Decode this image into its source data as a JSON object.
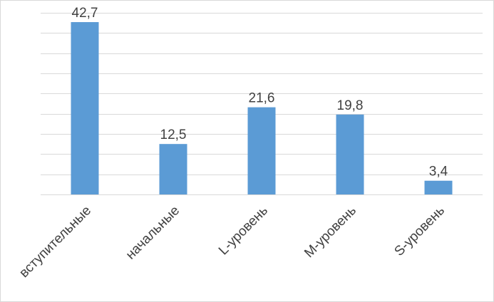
{
  "chart_data": {
    "type": "bar",
    "categories": [
      "вступительные",
      "начальные",
      "L-уровень",
      "M-уровень",
      "S-уровень"
    ],
    "values": [
      42.7,
      12.5,
      21.6,
      19.8,
      3.4
    ],
    "value_labels": [
      "42,7",
      "12,5",
      "21,6",
      "19,8",
      "3,4"
    ],
    "title": "",
    "xlabel": "",
    "ylabel": "",
    "ylim": [
      0,
      45
    ],
    "grid": true,
    "legend": "none",
    "bar_color": "#5b9bd5",
    "grid_color": "#d9d9d9",
    "text_color": "#404040"
  }
}
